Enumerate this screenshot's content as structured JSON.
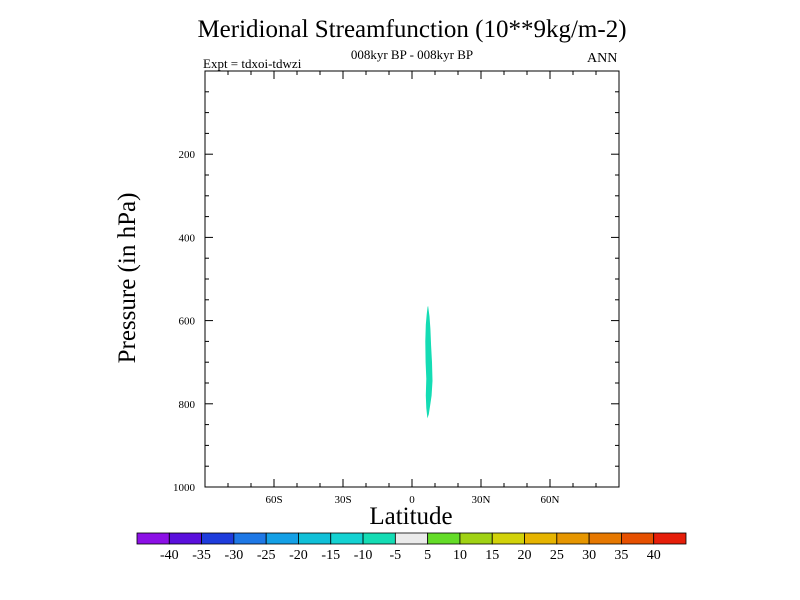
{
  "title": "Meridional Streamfunction (10**9kg/m-2)",
  "subtitle": "008kyr BP - 008kyr BP",
  "expt_label": "Expt = tdxoi-tdwzi",
  "season": "ANN",
  "chart_data": {
    "type": "contour",
    "xlabel": "Latitude",
    "ylabel": "Pressure (in hPa)",
    "xlim": [
      -90,
      90
    ],
    "ylim": [
      1000,
      0
    ],
    "y_scale": "linear",
    "x_ticks": [
      {
        "value": -60,
        "label": "60S"
      },
      {
        "value": -30,
        "label": "30S"
      },
      {
        "value": 0,
        "label": "0"
      },
      {
        "value": 30,
        "label": "30N"
      },
      {
        "value": 60,
        "label": "60N"
      }
    ],
    "y_ticks": [
      {
        "value": 200,
        "label": "200"
      },
      {
        "value": 400,
        "label": "400"
      },
      {
        "value": 600,
        "label": "600"
      },
      {
        "value": 800,
        "label": "800"
      },
      {
        "value": 1000,
        "label": "1000"
      }
    ],
    "filled_regions": [
      {
        "level": "-10 to -5",
        "color": "#14dcb4",
        "outline": [
          [
            7.0,
            565
          ],
          [
            7.6,
            590
          ],
          [
            8.0,
            620
          ],
          [
            8.3,
            660
          ],
          [
            8.7,
            700
          ],
          [
            8.9,
            745
          ],
          [
            8.5,
            780
          ],
          [
            8.0,
            800
          ],
          [
            7.3,
            825
          ],
          [
            6.7,
            835
          ],
          [
            6.2,
            810
          ],
          [
            6.0,
            780
          ],
          [
            6.2,
            740
          ],
          [
            5.9,
            700
          ],
          [
            5.8,
            650
          ],
          [
            6.0,
            610
          ],
          [
            6.4,
            585
          ],
          [
            6.8,
            567
          ]
        ]
      }
    ],
    "colorbar": {
      "labels": [
        "-40",
        "-35",
        "-30",
        "-25",
        "-20",
        "-15",
        "-10",
        "-5",
        "5",
        "10",
        "15",
        "20",
        "25",
        "30",
        "35",
        "40"
      ],
      "colors": [
        "#8c10e6",
        "#5a0fdc",
        "#1e3cdc",
        "#1e78e6",
        "#14a0e6",
        "#10c0d8",
        "#14d2d2",
        "#14dcb4",
        "#ebebeb",
        "#64dc28",
        "#a0d214",
        "#d2d20a",
        "#e6b400",
        "#e69600",
        "#e67800",
        "#e65000",
        "#e61e0a"
      ]
    }
  }
}
